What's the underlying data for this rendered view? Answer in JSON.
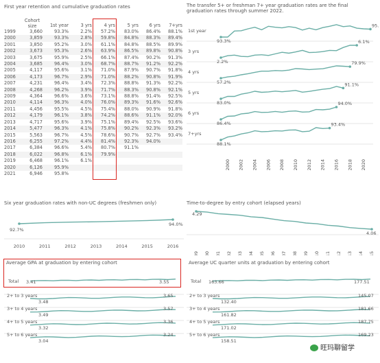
{
  "retention": {
    "title": "First year retention and cumulative graduation rates",
    "headers": [
      "",
      "Cohort size",
      "1st year",
      "3 yrs",
      "4 yrs",
      "5 yrs",
      "6 yrs",
      "7+yrs"
    ],
    "rows": [
      [
        "1999",
        "3,660",
        "93.3%",
        "2.2%",
        "57.2%",
        "83.0%",
        "86.4%",
        "88.1%"
      ],
      [
        "2000",
        "3,859",
        "93.3%",
        "2.8%",
        "59.8%",
        "84.8%",
        "88.3%",
        "89.4%"
      ],
      [
        "2001",
        "3,850",
        "95.2%",
        "3.0%",
        "61.1%",
        "84.8%",
        "88.5%",
        "89.9%"
      ],
      [
        "2002",
        "3,673",
        "95.3%",
        "2.6%",
        "63.9%",
        "86.5%",
        "89.8%",
        "90.8%"
      ],
      [
        "2003",
        "3,675",
        "95.9%",
        "2.5%",
        "66.1%",
        "87.4%",
        "90.2%",
        "91.3%"
      ],
      [
        "2004",
        "3,685",
        "96.4%",
        "3.0%",
        "68.7%",
        "88.7%",
        "91.2%",
        "92.2%"
      ],
      [
        "2005",
        "4,117",
        "95.6%",
        "3.1%",
        "71.0%",
        "87.9%",
        "90.7%",
        "91.8%"
      ],
      [
        "2006",
        "4,173",
        "96.7%",
        "2.9%",
        "71.0%",
        "88.2%",
        "90.8%",
        "91.9%"
      ],
      [
        "2007",
        "4,231",
        "96.4%",
        "3.4%",
        "72.3%",
        "88.8%",
        "91.3%",
        "92.2%"
      ],
      [
        "2008",
        "4,268",
        "96.2%",
        "3.9%",
        "71.7%",
        "88.3%",
        "90.8%",
        "92.1%"
      ],
      [
        "2009",
        "4,364",
        "96.6%",
        "3.6%",
        "73.1%",
        "88.8%",
        "91.4%",
        "92.5%"
      ],
      [
        "2010",
        "4,114",
        "96.3%",
        "4.0%",
        "76.0%",
        "89.3%",
        "91.6%",
        "92.6%"
      ],
      [
        "2011",
        "4,456",
        "95.5%",
        "4.5%",
        "75.4%",
        "88.0%",
        "90.9%",
        "91.8%"
      ],
      [
        "2012",
        "4,179",
        "96.1%",
        "3.8%",
        "74.2%",
        "88.6%",
        "91.1%",
        "92.0%"
      ],
      [
        "2013",
        "4,717",
        "95.6%",
        "3.9%",
        "75.1%",
        "89.4%",
        "92.5%",
        "93.6%"
      ],
      [
        "2014",
        "5,477",
        "96.3%",
        "4.1%",
        "75.8%",
        "90.2%",
        "92.3%",
        "93.2%"
      ],
      [
        "2015",
        "5,563",
        "96.7%",
        "4.5%",
        "78.6%",
        "90.7%",
        "92.7%",
        "93.4%"
      ],
      [
        "2016",
        "6,255",
        "97.2%",
        "4.4%",
        "81.4%",
        "92.3%",
        "94.0%",
        ""
      ],
      [
        "2017",
        "6,384",
        "96.6%",
        "5.4%",
        "80.7%",
        "91.1%",
        "",
        ""
      ],
      [
        "2018",
        "6,022",
        "96.8%",
        "6.1%",
        "79.9%",
        "",
        "",
        ""
      ],
      [
        "2019",
        "6,468",
        "96.1%",
        "6.1%",
        "",
        "",
        "",
        ""
      ],
      [
        "2020",
        "6,126",
        "95.9%",
        "",
        "",
        "",
        "",
        ""
      ],
      [
        "2021",
        "6,946",
        "95.8%",
        "",
        "",
        "",
        "",
        ""
      ]
    ]
  },
  "transfer": {
    "title_line1": "The transfer 5+ or freshman 7+ year graduation rates are the final",
    "title_line2": "graduation rates through summer 2022.",
    "rows": [
      {
        "label": "1st year",
        "start_label": "93.3%",
        "end_label": "95.8%"
      },
      {
        "label": "3 yrs",
        "start_label": "2.2%",
        "end_label": "6.1%"
      },
      {
        "label": "4 yrs",
        "start_label": "57.2%",
        "end_label": "79.9%"
      },
      {
        "label": "5 yrs",
        "start_label": "83.0%",
        "end_label": "91.1%"
      },
      {
        "label": "6 yrs",
        "start_label": "86.4%",
        "end_label": "94.0%"
      },
      {
        "label": "7+yrs",
        "start_label": "88.1%",
        "end_label": "93.4%"
      }
    ],
    "x_ticks": [
      "2000",
      "2002",
      "2004",
      "2006",
      "2008",
      "2010",
      "2012",
      "2014",
      "2016",
      "2018",
      "2020"
    ]
  },
  "six_year": {
    "title": "Six year graduation rates with non-UC degrees (freshmen only)",
    "start_label": "92.7%",
    "end_label": "94.0%",
    "x_ticks": [
      "2010",
      "2011",
      "2012",
      "2013",
      "2014",
      "2015",
      "2016"
    ]
  },
  "ttd": {
    "title": "Time-to-degree by entry cohort (elapsed years)",
    "start_label": "4.29",
    "end_label": "4.06",
    "x_ticks": [
      "1999",
      "2000",
      "2001",
      "2002",
      "2003",
      "2004",
      "2005",
      "2006",
      "2007",
      "2008",
      "2009",
      "2010",
      "2011",
      "2012",
      "2013",
      "2014",
      "2015"
    ]
  },
  "gpa": {
    "title": "Average GPA at graduation by entering cohort",
    "total_label": "Total",
    "total_start": "3.41",
    "total_end": "3.55",
    "rows": [
      {
        "label": "2+ to 3 years",
        "start": "3.48",
        "end": "3.65"
      },
      {
        "label": "3+ to 4 years",
        "start": "3.49",
        "end": "3.57"
      },
      {
        "label": "4+ to 5 years",
        "start": "3.32",
        "end": "3.36"
      },
      {
        "label": "5+ to 6 years",
        "start": "3.04",
        "end": "3.24"
      }
    ],
    "x_ticks": [
      "2000",
      "2002",
      "2004",
      "2006",
      "2008",
      "2010",
      "2012",
      "2014",
      "2016",
      "2018"
    ]
  },
  "units": {
    "title": "Average UC quarter units at graduation by entering cohort",
    "total_label": "Total",
    "total_start": "163.66",
    "total_end": "177.51",
    "rows": [
      {
        "label": "2+ to 3 years",
        "start": "132.40",
        "end": "145.07"
      },
      {
        "label": "3+ to 4 years",
        "start": "161.82",
        "end": "181.66"
      },
      {
        "label": "4+ to 5 years",
        "start": "171.02",
        "end": "187.75"
      },
      {
        "label": "5+ to 6 years",
        "start": "158.51",
        "end": "169.23"
      }
    ],
    "x_ticks": [
      "2000",
      "2002",
      "2004",
      "2006",
      "2008",
      "2010",
      "2012",
      "2014",
      "2016",
      "2018"
    ]
  },
  "watermark": {
    "text": "旺玛聊留学"
  },
  "colors": {
    "line": "#6aaea6",
    "red": "#d9241f",
    "grid": "#e6e6e6",
    "text": "#555555"
  }
}
